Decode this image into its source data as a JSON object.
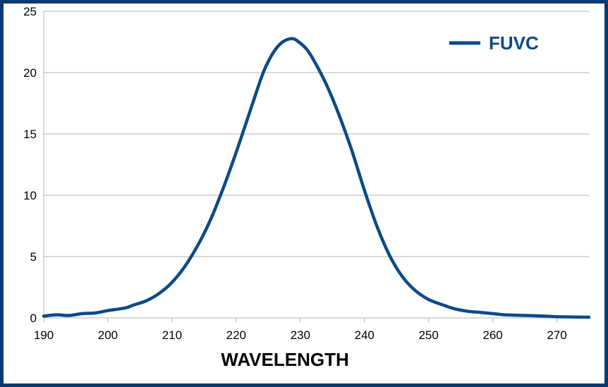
{
  "chart_data": {
    "type": "line",
    "title": "",
    "xlabel": "WAVELENGTH",
    "ylabel": "",
    "xlim": [
      190,
      275
    ],
    "ylim": [
      0,
      25
    ],
    "xticks": [
      190,
      200,
      210,
      220,
      230,
      240,
      250,
      260,
      270
    ],
    "yticks": [
      0,
      5,
      10,
      15,
      20,
      25
    ],
    "grid": "horizontal",
    "legend_position": "top-right",
    "series": [
      {
        "name": "FUVC",
        "color": "#0b4a86",
        "points": [
          [
            190,
            0.15
          ],
          [
            192,
            0.25
          ],
          [
            194,
            0.2
          ],
          [
            196,
            0.35
          ],
          [
            198,
            0.4
          ],
          [
            200,
            0.6
          ],
          [
            202,
            0.75
          ],
          [
            203,
            0.85
          ],
          [
            204,
            1.05
          ],
          [
            206,
            1.4
          ],
          [
            208,
            2.0
          ],
          [
            210,
            2.9
          ],
          [
            212,
            4.2
          ],
          [
            214,
            5.9
          ],
          [
            216,
            8.0
          ],
          [
            218,
            10.6
          ],
          [
            220,
            13.5
          ],
          [
            222,
            16.6
          ],
          [
            224,
            19.7
          ],
          [
            225,
            20.9
          ],
          [
            226,
            21.8
          ],
          [
            227,
            22.4
          ],
          [
            228,
            22.7
          ],
          [
            229,
            22.75
          ],
          [
            230,
            22.4
          ],
          [
            231,
            21.9
          ],
          [
            232,
            21.1
          ],
          [
            234,
            19.1
          ],
          [
            236,
            16.6
          ],
          [
            238,
            13.7
          ],
          [
            240,
            10.4
          ],
          [
            242,
            7.4
          ],
          [
            244,
            5.0
          ],
          [
            246,
            3.3
          ],
          [
            248,
            2.2
          ],
          [
            250,
            1.5
          ],
          [
            252,
            1.1
          ],
          [
            254,
            0.75
          ],
          [
            256,
            0.55
          ],
          [
            258,
            0.45
          ],
          [
            260,
            0.35
          ],
          [
            262,
            0.25
          ],
          [
            265,
            0.2
          ],
          [
            268,
            0.15
          ],
          [
            270,
            0.1
          ],
          [
            272,
            0.08
          ],
          [
            275,
            0.06
          ]
        ]
      }
    ]
  }
}
